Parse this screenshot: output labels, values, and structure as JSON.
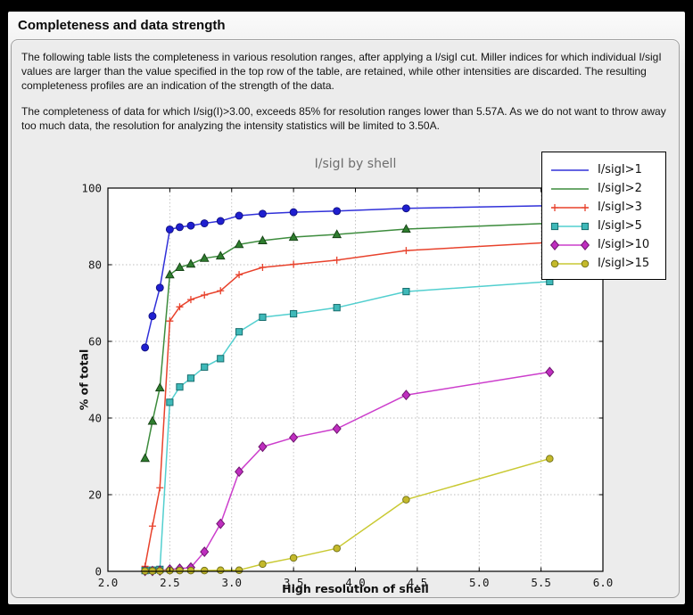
{
  "window": {
    "title": "Completeness and data strength"
  },
  "description": {
    "paragraph1": "The following table lists the completeness in various resolution ranges, after applying a I/sigI cut. Miller indices for which individual I/sigI values are larger than the value specified in the top row of the table, are retained, while other intensities are discarded. The resulting completeness profiles are an indication of the strength of the data.",
    "paragraph2": "The completeness of data for which I/sig(I)>3.00, exceeds  85% for resolution ranges lower than 5.57A. As we do not want to throw away too much data, the resolution for analyzing the intensity statistics will be limited to 3.50A."
  },
  "chart_data": {
    "type": "line",
    "title": "I/sigI by shell",
    "xlabel": "High resolution of shell",
    "ylabel": "% of total",
    "xlim": [
      2.0,
      6.0
    ],
    "ylim": [
      0,
      100
    ],
    "xticks": [
      "2.0",
      "2.5",
      "3.0",
      "3.5",
      "4.0",
      "4.5",
      "5.0",
      "5.5",
      "6.0"
    ],
    "yticks": [
      "0",
      "20",
      "40",
      "60",
      "80",
      "100"
    ],
    "grid": true,
    "legend_position": "upper right",
    "x": [
      2.3,
      2.36,
      2.42,
      2.5,
      2.58,
      2.67,
      2.78,
      2.91,
      3.06,
      3.25,
      3.5,
      3.85,
      4.41,
      5.57
    ],
    "series": [
      {
        "name": "I/sigI>1",
        "marker": "circle",
        "legend_markers": false,
        "line": "#3030d9",
        "fill": "#1f1fd0",
        "edge": "#101080",
        "values": [
          58.4,
          66.6,
          74.0,
          89.2,
          89.8,
          90.2,
          90.8,
          91.4,
          92.8,
          93.3,
          93.7,
          94.0,
          94.7,
          95.4
        ]
      },
      {
        "name": "I/sigI>2",
        "marker": "triangle",
        "legend_markers": false,
        "line": "#3d8c3d",
        "fill": "#2e7d2e",
        "edge": "#154015",
        "values": [
          29.5,
          39.2,
          47.9,
          77.4,
          79.3,
          80.2,
          81.7,
          82.3,
          85.3,
          86.3,
          87.2,
          87.9,
          89.3,
          90.8
        ]
      },
      {
        "name": "I/sigI>3",
        "marker": "plus",
        "legend_markers": true,
        "line": "#e8422c",
        "fill": "#e8422c",
        "edge": "#e8422c",
        "values": [
          1.3,
          11.8,
          21.8,
          65.3,
          69.0,
          70.9,
          72.1,
          73.2,
          77.4,
          79.3,
          80.1,
          81.2,
          83.7,
          85.8
        ]
      },
      {
        "name": "I/sigI>5",
        "marker": "square",
        "legend_markers": true,
        "line": "#52cfcf",
        "fill": "#3fb9b9",
        "edge": "#176d6d",
        "values": [
          0.2,
          0.3,
          0.5,
          44.1,
          48.1,
          50.4,
          53.3,
          55.5,
          62.5,
          66.3,
          67.2,
          68.8,
          73.0,
          75.6
        ]
      },
      {
        "name": "I/sigI>10",
        "marker": "diamond",
        "legend_markers": true,
        "line": "#cc3ecc",
        "fill": "#bf2ebf",
        "edge": "#6e176e",
        "values": [
          0.1,
          0.1,
          0.2,
          0.5,
          0.7,
          1.0,
          5.1,
          12.4,
          26.0,
          32.5,
          34.9,
          37.2,
          46.0,
          52.0
        ]
      },
      {
        "name": "I/sigI>15",
        "marker": "circle-small",
        "legend_markers": true,
        "line": "#c9c932",
        "fill": "#c4b92b",
        "edge": "#6e6e17",
        "values": [
          0.1,
          0.1,
          0.1,
          0.2,
          0.2,
          0.2,
          0.2,
          0.3,
          0.3,
          1.9,
          3.5,
          6.0,
          18.7,
          29.4
        ]
      }
    ]
  }
}
